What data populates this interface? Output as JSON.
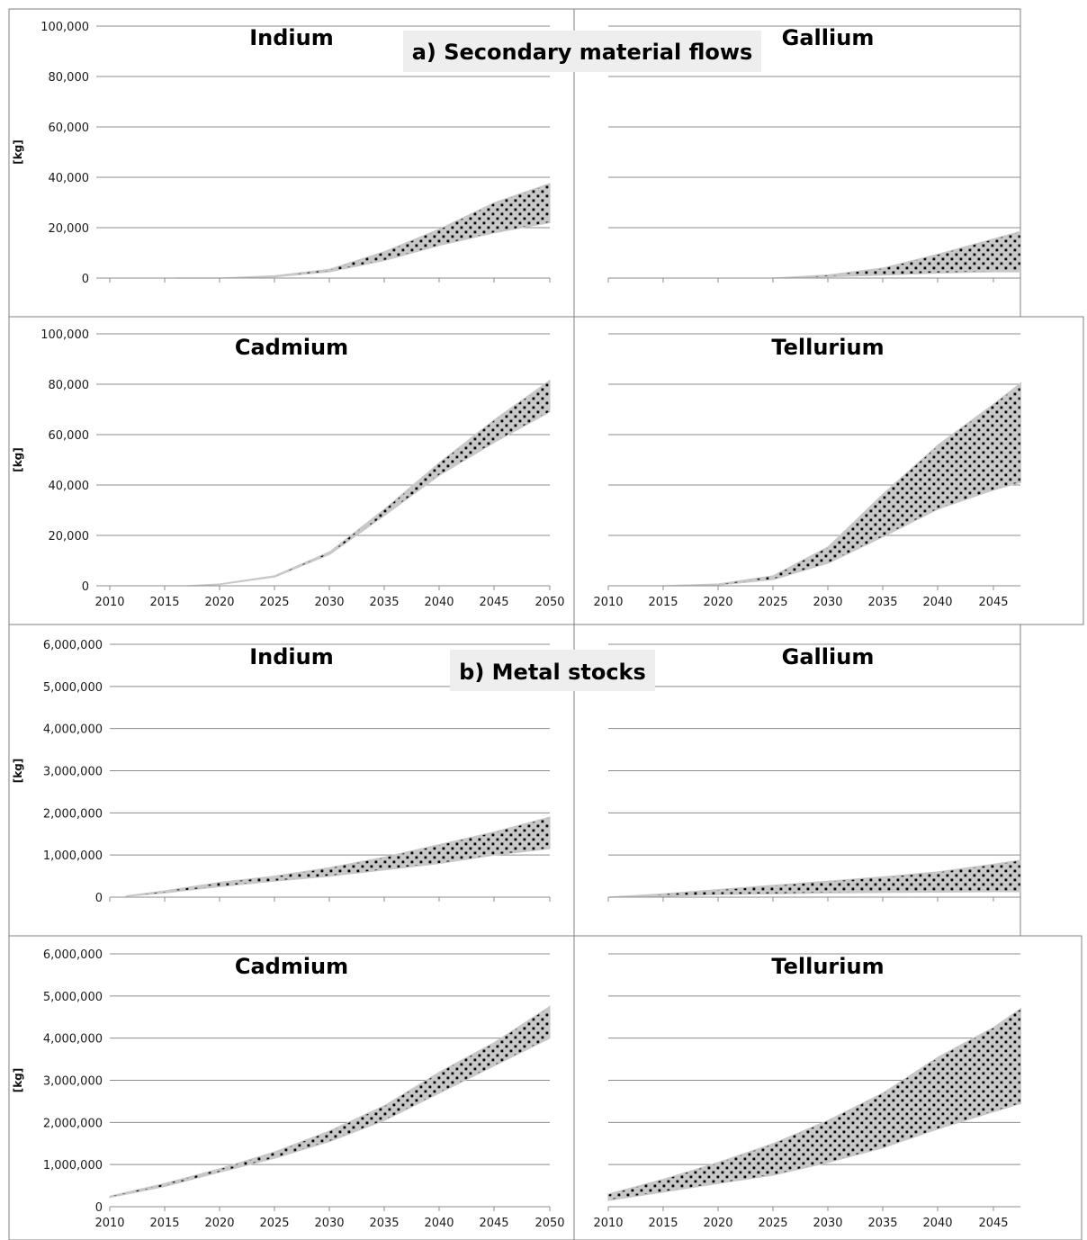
{
  "section_titles": {
    "a": "a) Secondary material flows",
    "b": "b) Metal stocks"
  },
  "colors": {
    "band": "#c8c8c8",
    "dots": "#000000",
    "grid": "#8c8c8c",
    "frame": "#808080"
  },
  "chart_data": [
    {
      "type": "area",
      "title": "Indium",
      "section": "a) Secondary material flows",
      "ylabel": "[kg]",
      "ylim": [
        0,
        100000
      ],
      "yticks": [
        0,
        20000,
        40000,
        60000,
        80000,
        100000
      ],
      "ytick_labels": [
        "0",
        "20,000",
        "40,000",
        "60,000",
        "80,000",
        "100,000"
      ],
      "xlim": [
        2010,
        2050
      ],
      "x_tick_labels_shown": false,
      "x": [
        2016,
        2020,
        2025,
        2030,
        2035,
        2040,
        2045,
        2050
      ],
      "series": [
        {
          "values": [
            0,
            0,
            500,
            2500,
            7000,
            13000,
            18000,
            22000
          ]
        },
        {
          "values": [
            0,
            0,
            900,
            3500,
            10500,
            19500,
            30000,
            37500
          ]
        }
      ]
    },
    {
      "type": "area",
      "title": "Gallium",
      "section": "a) Secondary material flows",
      "ylabel": "",
      "ylim": [
        0,
        100000
      ],
      "yticks": [
        0,
        20000,
        40000,
        60000,
        80000,
        100000
      ],
      "ytick_labels": [],
      "xlim": [
        2010,
        2050
      ],
      "x_tick_labels_shown": false,
      "x": [
        2025,
        2030,
        2035,
        2040,
        2045,
        2047.5
      ],
      "series": [
        {
          "values": [
            0,
            500,
            1200,
            2000,
            2500,
            2500
          ]
        },
        {
          "values": [
            0,
            1200,
            4000,
            9500,
            15500,
            18500
          ]
        }
      ]
    },
    {
      "type": "area",
      "title": "Cadmium",
      "section": "a) Secondary material flows",
      "ylabel": "[kg]",
      "ylim": [
        0,
        100000
      ],
      "yticks": [
        0,
        20000,
        40000,
        60000,
        80000,
        100000
      ],
      "ytick_labels": [
        "0",
        "20,000",
        "40,000",
        "60,000",
        "80,000",
        "100,000"
      ],
      "xlim": [
        2010,
        2050
      ],
      "x_tick_labels_shown": true,
      "xticks": [
        2010,
        2015,
        2020,
        2025,
        2030,
        2035,
        2040,
        2045,
        2050
      ],
      "xtick_labels": [
        "2010",
        "2015",
        "2020",
        "2025",
        "2030",
        "2035",
        "2040",
        "2045",
        "2050"
      ],
      "x": [
        2017,
        2020,
        2025,
        2030,
        2035,
        2040,
        2045,
        2050
      ],
      "series": [
        {
          "values": [
            0,
            500,
            3500,
            12500,
            28000,
            44000,
            57000,
            69000
          ]
        },
        {
          "values": [
            0,
            700,
            4000,
            13500,
            30500,
            49000,
            66000,
            81500
          ]
        }
      ]
    },
    {
      "type": "area",
      "title": "Tellurium",
      "section": "a) Secondary material flows",
      "ylabel": "",
      "ylim": [
        0,
        100000
      ],
      "yticks": [
        0,
        20000,
        40000,
        60000,
        80000,
        100000
      ],
      "ytick_labels": [],
      "xlim": [
        2010,
        2050
      ],
      "x_tick_labels_shown": true,
      "xticks": [
        2010,
        2015,
        2020,
        2025,
        2030,
        2035,
        2040,
        2045
      ],
      "xtick_labels": [
        "2010",
        "2015",
        "2020",
        "2025",
        "2030",
        "2035",
        "2040",
        "2045"
      ],
      "x": [
        2015,
        2020,
        2025,
        2030,
        2035,
        2040,
        2045,
        2047.5
      ],
      "series": [
        {
          "values": [
            0,
            300,
            2500,
            9000,
            19500,
            30500,
            38000,
            41000
          ]
        },
        {
          "values": [
            0,
            700,
            4000,
            15500,
            36500,
            56000,
            72000,
            80500
          ]
        }
      ]
    },
    {
      "type": "area",
      "title": "Indium",
      "section": "b) Metal stocks",
      "ylabel": "[kg]",
      "ylim": [
        0,
        6000000
      ],
      "yticks": [
        0,
        1000000,
        2000000,
        3000000,
        4000000,
        5000000,
        6000000
      ],
      "ytick_labels": [
        "0",
        "1,000,000",
        "2,000,000",
        "3,000,000",
        "4,000,000",
        "5,000,000",
        "6,000,000"
      ],
      "xlim": [
        2010,
        2050
      ],
      "x_tick_labels_shown": false,
      "x": [
        2011.5,
        2015,
        2020,
        2025,
        2030,
        2035,
        2040,
        2045,
        2050
      ],
      "series": [
        {
          "values": [
            20000,
            100000,
            250000,
            380000,
            500000,
            650000,
            800000,
            1000000,
            1150000
          ]
        },
        {
          "values": [
            30000,
            150000,
            350000,
            500000,
            700000,
            950000,
            1250000,
            1550000,
            1900000
          ]
        }
      ]
    },
    {
      "type": "area",
      "title": "Gallium",
      "section": "b) Metal stocks",
      "ylabel": "",
      "ylim": [
        0,
        6000000
      ],
      "yticks": [
        0,
        1000000,
        2000000,
        3000000,
        4000000,
        5000000,
        6000000
      ],
      "ytick_labels": [],
      "xlim": [
        2010,
        2050
      ],
      "x_tick_labels_shown": false,
      "x": [
        2010,
        2015,
        2020,
        2025,
        2030,
        2035,
        2040,
        2045,
        2047.5
      ],
      "series": [
        {
          "values": [
            0,
            20000,
            60000,
            80000,
            100000,
            110000,
            120000,
            130000,
            130000
          ]
        },
        {
          "values": [
            0,
            80000,
            180000,
            280000,
            380000,
            480000,
            600000,
            780000,
            880000
          ]
        }
      ]
    },
    {
      "type": "area",
      "title": "Cadmium",
      "section": "b) Metal stocks",
      "ylabel": "[kg]",
      "ylim": [
        0,
        6000000
      ],
      "yticks": [
        0,
        1000000,
        2000000,
        3000000,
        4000000,
        5000000,
        6000000
      ],
      "ytick_labels": [
        "0",
        "1,000,000",
        "2,000,000",
        "3,000,000",
        "4,000,000",
        "5,000,000",
        "6,000,000"
      ],
      "xlim": [
        2010,
        2050
      ],
      "x_tick_labels_shown": true,
      "xticks": [
        2010,
        2015,
        2020,
        2025,
        2030,
        2035,
        2040,
        2045,
        2050
      ],
      "xtick_labels": [
        "2010",
        "2015",
        "2020",
        "2025",
        "2030",
        "2035",
        "2040",
        "2045",
        "2050"
      ],
      "x": [
        2010,
        2015,
        2020,
        2025,
        2030,
        2035,
        2040,
        2045,
        2050
      ],
      "series": [
        {
          "values": [
            220000,
            480000,
            820000,
            1150000,
            1550000,
            2050000,
            2700000,
            3350000,
            4000000
          ]
        },
        {
          "values": [
            250000,
            550000,
            900000,
            1300000,
            1800000,
            2400000,
            3200000,
            3900000,
            4750000
          ]
        }
      ]
    },
    {
      "type": "area",
      "title": "Tellurium",
      "section": "b) Metal stocks",
      "ylabel": "",
      "ylim": [
        0,
        6000000
      ],
      "yticks": [
        0,
        1000000,
        2000000,
        3000000,
        4000000,
        5000000,
        6000000
      ],
      "ytick_labels": [],
      "xlim": [
        2010,
        2050
      ],
      "x_tick_labels_shown": true,
      "xticks": [
        2010,
        2015,
        2020,
        2025,
        2030,
        2035,
        2040,
        2045
      ],
      "xtick_labels": [
        "2010",
        "2015",
        "2020",
        "2025",
        "2030",
        "2035",
        "2040",
        "2045"
      ],
      "x": [
        2010,
        2015,
        2020,
        2025,
        2030,
        2035,
        2040,
        2045,
        2047.5
      ],
      "series": [
        {
          "values": [
            150000,
            350000,
            550000,
            750000,
            1050000,
            1400000,
            1850000,
            2250000,
            2450000
          ]
        },
        {
          "values": [
            300000,
            650000,
            1050000,
            1500000,
            2050000,
            2700000,
            3550000,
            4250000,
            4700000
          ]
        }
      ]
    }
  ]
}
